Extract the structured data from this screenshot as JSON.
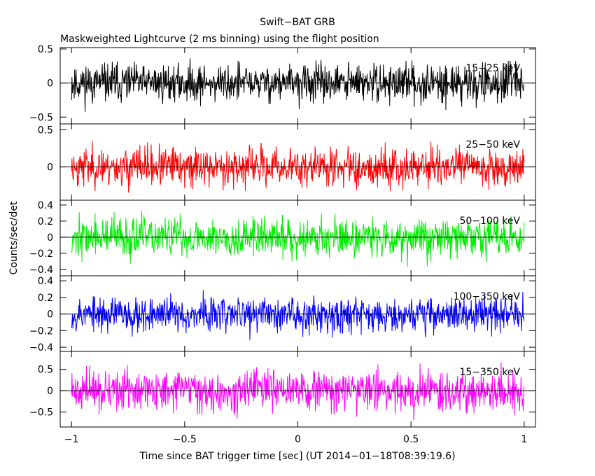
{
  "chart_data": {
    "type": "line",
    "title": "Swift−BAT GRB",
    "subtitle": "Maskweighted Lightcurve (2 ms binning) using the flight position",
    "xlabel": "Time since BAT trigger time [sec] (UT 2014−01−18T08:39:19.6)",
    "ylabel": "Counts/sec/det",
    "xlim": [
      -1.05,
      1.05
    ],
    "xticks": [
      {
        "value": -1,
        "label": "−1"
      },
      {
        "value": -0.5,
        "label": "−0.5"
      },
      {
        "value": 0,
        "label": "0"
      },
      {
        "value": 0.5,
        "label": "0.5"
      },
      {
        "value": 1,
        "label": "1"
      }
    ],
    "x_range": [
      -1,
      1
    ],
    "bin_size": 0.002,
    "panels": [
      {
        "band": "15−25 keV",
        "color": "#000000",
        "ylim": [
          -0.6,
          0.52
        ],
        "yticks": [
          {
            "value": 0.5,
            "label": "0.5"
          },
          {
            "value": 0,
            "label": "0"
          },
          {
            "value": -0.5,
            "label": "−0.5"
          }
        ],
        "noise_amplitude": 0.17,
        "seed": 11
      },
      {
        "band": "25−50 keV",
        "color": "#ff0000",
        "ylim": [
          -0.45,
          0.58
        ],
        "yticks": [
          {
            "value": 0.5,
            "label": "0.5"
          },
          {
            "value": 0,
            "label": "0"
          }
        ],
        "noise_amplitude": 0.16,
        "seed": 23
      },
      {
        "band": "50−100 keV",
        "color": "#00ee00",
        "ylim": [
          -0.48,
          0.46
        ],
        "yticks": [
          {
            "value": 0.4,
            "label": "0.4"
          },
          {
            "value": 0.2,
            "label": "0.2"
          },
          {
            "value": 0,
            "label": "0"
          },
          {
            "value": -0.2,
            "label": "−0.2"
          },
          {
            "value": -0.4,
            "label": "−0.4"
          }
        ],
        "noise_amplitude": 0.15,
        "seed": 37
      },
      {
        "band": "100−350 keV",
        "color": "#0000ff",
        "ylim": [
          -0.45,
          0.46
        ],
        "yticks": [
          {
            "value": 0.4,
            "label": "0.4"
          },
          {
            "value": 0.2,
            "label": "0.2"
          },
          {
            "value": 0,
            "label": "0"
          },
          {
            "value": -0.2,
            "label": "−0.2"
          },
          {
            "value": -0.4,
            "label": "−0.4"
          }
        ],
        "noise_amplitude": 0.13,
        "seed": 53
      },
      {
        "band": "15−350 keV",
        "color": "#ff00ff",
        "ylim": [
          -0.85,
          0.92
        ],
        "yticks": [
          {
            "value": 0.5,
            "label": "0.5"
          },
          {
            "value": 0,
            "label": "0"
          },
          {
            "value": -0.5,
            "label": "−0.5"
          }
        ],
        "noise_amplitude": 0.28,
        "seed": 71
      }
    ],
    "grid": false,
    "legend": "band label inside each panel, top-right"
  }
}
